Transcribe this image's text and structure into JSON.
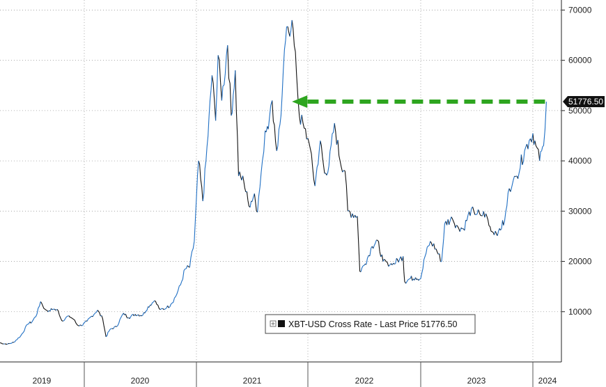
{
  "chart_data": {
    "type": "line",
    "title": "",
    "xlabel": "",
    "ylabel": "",
    "x_tick_labels": [
      "2019",
      "2020",
      "2021",
      "2022",
      "2023",
      "2024"
    ],
    "y_ticks": [
      10000,
      20000,
      30000,
      40000,
      50000,
      60000,
      70000
    ],
    "y_tick_labels": [
      "10000",
      "20000",
      "30000",
      "40000",
      "50000",
      "60000",
      "70000"
    ],
    "ylim": [
      0,
      72000
    ],
    "grid": true,
    "y_axis_side": "right",
    "legend": {
      "placement": "bottom-right",
      "text": "XBT-USD Cross Rate - Last Price 51776.50"
    },
    "last_price_label": "51776.50",
    "colors": {
      "up": "#1f6fc4",
      "down": "#111111",
      "arrow": "#2ea51f",
      "label_bg": "#111111"
    },
    "annotation": {
      "type": "horizontal-arrow",
      "value": 51776.5,
      "from_x": "2024-02-14",
      "to_x": "2021-11-10"
    },
    "series": [
      {
        "name": "XBT-USD Cross Rate - Last Price",
        "x": [
          "2019-01-01",
          "2019-02-01",
          "2019-03-01",
          "2019-04-01",
          "2019-05-01",
          "2019-05-20",
          "2019-06-10",
          "2019-06-26",
          "2019-07-15",
          "2019-08-01",
          "2019-08-20",
          "2019-09-10",
          "2019-09-26",
          "2019-10-26",
          "2019-11-15",
          "2019-12-01",
          "2019-12-20",
          "2020-01-10",
          "2020-02-13",
          "2020-03-01",
          "2020-03-12",
          "2020-03-25",
          "2020-04-15",
          "2020-05-08",
          "2020-05-25",
          "2020-06-15",
          "2020-07-10",
          "2020-07-27",
          "2020-08-17",
          "2020-09-05",
          "2020-09-25",
          "2020-10-10",
          "2020-10-25",
          "2020-11-10",
          "2020-11-25",
          "2020-12-10",
          "2020-12-25",
          "2021-01-08",
          "2021-01-22",
          "2021-02-08",
          "2021-02-21",
          "2021-03-05",
          "2021-03-13",
          "2021-03-25",
          "2021-04-13",
          "2021-04-25",
          "2021-05-08",
          "2021-05-19",
          "2021-06-05",
          "2021-06-22",
          "2021-07-10",
          "2021-07-20",
          "2021-08-05",
          "2021-08-14",
          "2021-08-28",
          "2021-09-06",
          "2021-09-21",
          "2021-10-05",
          "2021-10-20",
          "2021-11-10",
          "2021-11-25",
          "2021-12-04",
          "2021-12-20",
          "2022-01-05",
          "2022-01-24",
          "2022-02-10",
          "2022-02-24",
          "2022-03-10",
          "2022-03-28",
          "2022-04-15",
          "2022-05-01",
          "2022-05-10",
          "2022-05-25",
          "2022-06-10",
          "2022-06-18",
          "2022-07-05",
          "2022-07-28",
          "2022-08-14",
          "2022-09-01",
          "2022-09-15",
          "2022-10-01",
          "2022-10-25",
          "2022-11-05",
          "2022-11-10",
          "2022-11-25",
          "2022-12-15",
          "2023-01-01",
          "2023-01-15",
          "2023-02-01",
          "2023-02-20",
          "2023-03-10",
          "2023-03-20",
          "2023-04-14",
          "2023-05-01",
          "2023-05-20",
          "2023-06-15",
          "2023-06-23",
          "2023-07-14",
          "2023-08-01",
          "2023-08-18",
          "2023-09-11",
          "2023-10-01",
          "2023-10-16",
          "2023-10-25",
          "2023-11-10",
          "2023-12-05",
          "2023-12-20",
          "2024-01-01",
          "2024-01-11",
          "2024-01-23",
          "2024-02-05",
          "2024-02-14"
        ],
        "values": [
          3800,
          3500,
          3900,
          5200,
          7500,
          8000,
          9500,
          12000,
          10500,
          10200,
          10500,
          10200,
          8200,
          9200,
          8500,
          7400,
          7200,
          8100,
          10300,
          8600,
          5000,
          6500,
          7000,
          9700,
          8800,
          9500,
          9300,
          11000,
          12200,
          10400,
          10700,
          11500,
          13000,
          15300,
          18500,
          18800,
          24000,
          40000,
          32000,
          45000,
          57000,
          48000,
          61000,
          52000,
          63000,
          49000,
          58000,
          37000,
          36000,
          31000,
          33500,
          29800,
          40000,
          46000,
          48500,
          52000,
          42000,
          49000,
          64000,
          68000,
          57000,
          49000,
          46500,
          43500,
          35000,
          44000,
          37500,
          39000,
          47500,
          40000,
          38000,
          30000,
          29500,
          29000,
          18000,
          19500,
          23000,
          24200,
          20000,
          19800,
          19300,
          20500,
          21000,
          16000,
          16500,
          16800,
          16600,
          21000,
          24000,
          22500,
          20000,
          27500,
          28500,
          27000,
          26500,
          30500,
          30000,
          29200,
          29500,
          26000,
          26000,
          28000,
          34500,
          35000,
          37000,
          42000,
          44000,
          45500,
          43000,
          40000,
          43000,
          51776.5
        ]
      }
    ]
  }
}
